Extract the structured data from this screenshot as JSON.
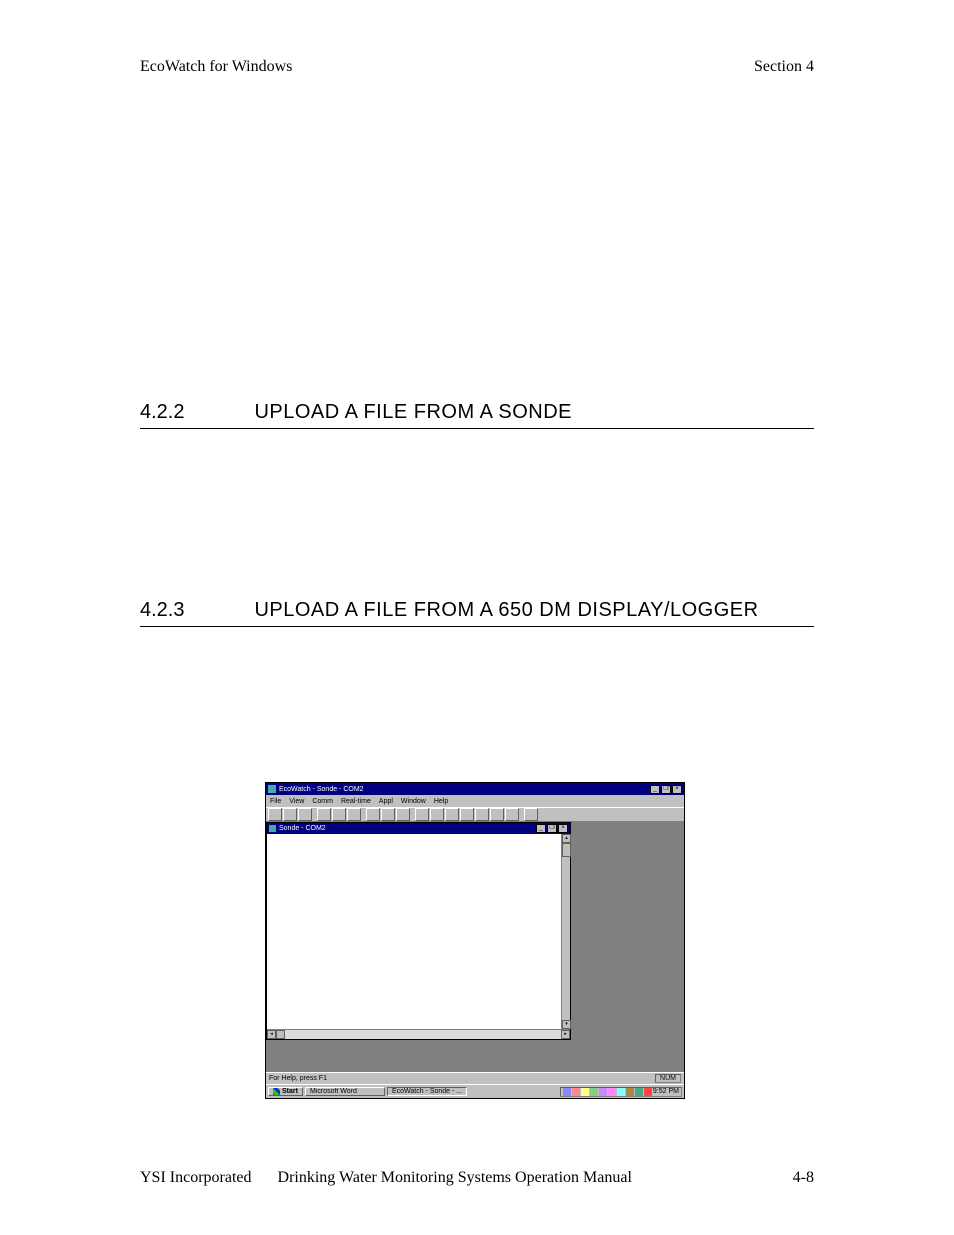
{
  "header": {
    "left": "EcoWatch for Windows",
    "right": "Section 4"
  },
  "sections": {
    "s422": {
      "num": "4.2.2",
      "title": "UPLOAD A FILE FROM A SONDE"
    },
    "s423": {
      "num": "4.2.3",
      "title": "UPLOAD A FILE FROM A 650 DM DISPLAY/LOGGER"
    }
  },
  "app": {
    "title": "EcoWatch - Sonde - COM2",
    "menus": [
      "File",
      "View",
      "Comm",
      "Real-time",
      "Appl",
      "Window",
      "Help"
    ],
    "child_title": "Sonde - COM2",
    "status_text": "For Help, press F1",
    "status_indicator": "NUM",
    "taskbar": {
      "start": "Start",
      "items": [
        "Microsoft Word",
        "EcoWatch - Sonde - ..."
      ],
      "clock": "9:52 PM"
    },
    "colors": {
      "titlebar": "#000080",
      "chrome": "#c0c0c0",
      "mdi_bg": "#808080",
      "text": "#000000"
    }
  },
  "footer": {
    "company": "YSI Incorporated",
    "manual": "Drinking Water Monitoring Systems Operation Manual",
    "page": "4-8"
  }
}
